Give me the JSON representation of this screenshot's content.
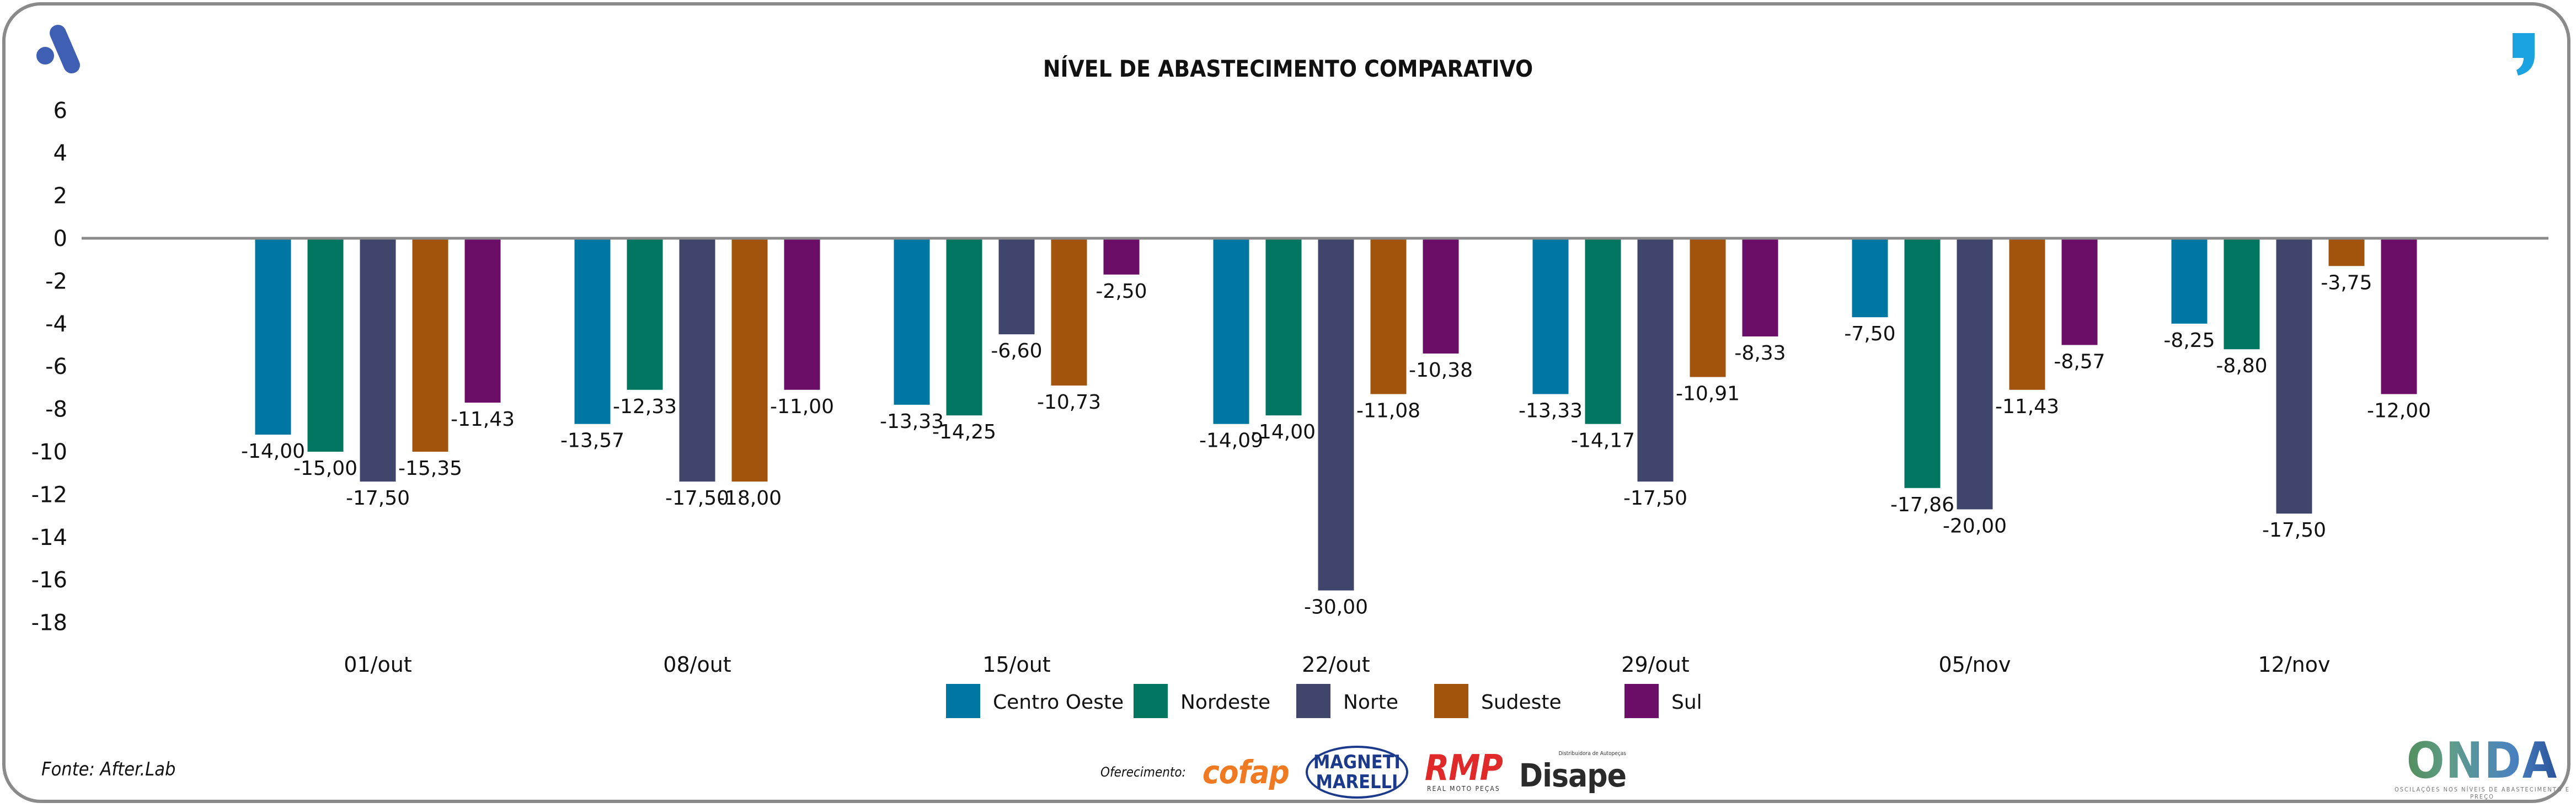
{
  "header": {
    "title": "NÍVEL DE ABASTECIMENTO COMPARATIVO"
  },
  "footer": {
    "source": "Fonte: After.Lab",
    "sponsor_label": "Oferecimento:",
    "sponsors": [
      "cofap",
      "MAGNETI MARELLI",
      "RMP",
      "Disape"
    ],
    "sponsor_subtitles": {
      "rmp": "REAL MOTO PEÇAS",
      "disape": "Distribuidora de Autopeças"
    },
    "onda_logo": "ONDA",
    "onda_tagline": "OSCILAÇÕES NOS NÍVEIS DE ABASTECIMENTO E PREÇO"
  },
  "colors": {
    "accent_logo": "#3f5fb5",
    "quote_logo": "#1aa3e0"
  },
  "chart_data": {
    "type": "bar",
    "title": "NÍVEL DE ABASTECIMENTO COMPARATIVO",
    "xlabel": "",
    "ylabel": "",
    "ylim": [
      -18,
      6
    ],
    "yticks": [
      "6",
      "4",
      "2",
      "0",
      "-2",
      "-4",
      "-6",
      "-8",
      "-10",
      "-12",
      "-14",
      "-16",
      "-18"
    ],
    "ytick_values": [
      6,
      4,
      2,
      0,
      -2,
      -4,
      -6,
      -8,
      -10,
      -12,
      -14,
      -16,
      -18
    ],
    "legend_position": "bottom",
    "categories": [
      "01/out",
      "08/out",
      "15/out",
      "22/out",
      "29/out",
      "05/nov",
      "12/nov"
    ],
    "series": [
      {
        "name": "Centro Oeste",
        "color": "#0077a3",
        "labels": [
          "-14,00",
          "-13,57",
          "-13,33",
          "-14,09",
          "-13,33",
          "-7,50",
          "-8,25"
        ],
        "bar_values": [
          -9.2,
          -8.7,
          -7.8,
          -8.7,
          -7.3,
          -3.7,
          -4.0
        ]
      },
      {
        "name": "Nordeste",
        "color": "#00755f",
        "labels": [
          "-15,00",
          "-12,33",
          "-14,25",
          "-14,00",
          "-14,17",
          "-17,86",
          "-8,80"
        ],
        "bar_values": [
          -10.0,
          -7.1,
          -8.3,
          -8.3,
          -8.7,
          -11.7,
          -5.2
        ]
      },
      {
        "name": "Norte",
        "color": "#40456b",
        "labels": [
          "-17,50",
          "-17,50",
          "-6,60",
          "-30,00",
          "-17,50",
          "-20,00",
          "-17,50"
        ],
        "bar_values": [
          -11.4,
          -11.4,
          -4.5,
          -16.5,
          -11.4,
          -12.7,
          -12.9
        ]
      },
      {
        "name": "Sudeste",
        "color": "#a3540c",
        "labels": [
          "-15,35",
          "-18,00",
          "-10,73",
          "-11,08",
          "-10,91",
          "-11,43",
          "-3,75"
        ],
        "bar_values": [
          -10.0,
          -11.4,
          -6.9,
          -7.3,
          -6.5,
          -7.1,
          -1.3
        ]
      },
      {
        "name": "Sul",
        "color": "#6b0e68",
        "labels": [
          "-11,43",
          "-11,00",
          "-2,50",
          "-10,38",
          "-8,33",
          "-8,57",
          "-12,00"
        ],
        "bar_values": [
          -7.7,
          -7.1,
          -1.7,
          -5.4,
          -4.6,
          -5.0,
          -7.3
        ]
      }
    ]
  }
}
